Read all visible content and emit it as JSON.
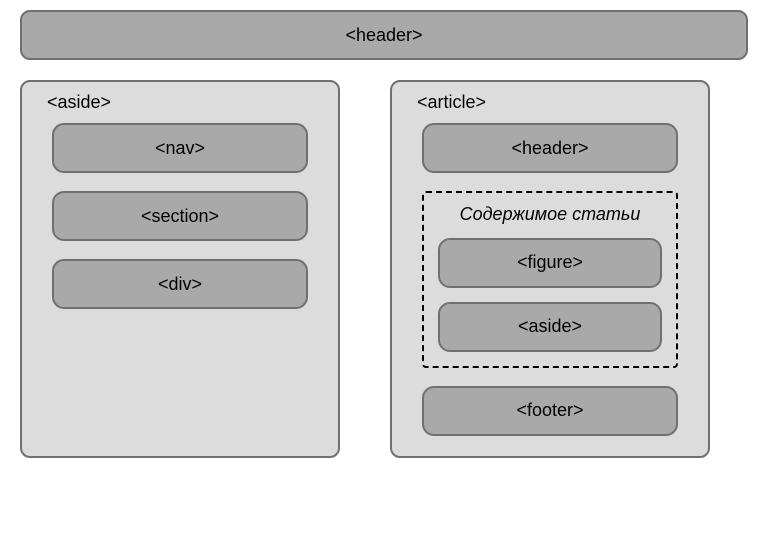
{
  "colors": {
    "dark_fill": "#a9a9a9",
    "light_fill": "#dcdcdc",
    "border": "#707070",
    "text": "#000000",
    "dashed_border": "#000000"
  },
  "styling": {
    "outer_radius": 10,
    "inner_radius": 12,
    "border_width": 2,
    "dashed_border_width": 2,
    "font_size": 18
  },
  "diagram": {
    "type": "flowchart",
    "header": {
      "label": "<header>"
    },
    "aside": {
      "label": "<aside>",
      "items": [
        {
          "label": "<nav>"
        },
        {
          "label": "<section>"
        },
        {
          "label": "<div>"
        }
      ]
    },
    "article": {
      "label": "<article>",
      "header": {
        "label": "<header>"
      },
      "content": {
        "label": "Содержимое статьи",
        "items": [
          {
            "label": "<figure>"
          },
          {
            "label": "<aside>"
          }
        ]
      },
      "footer": {
        "label": "<footer>"
      }
    }
  }
}
